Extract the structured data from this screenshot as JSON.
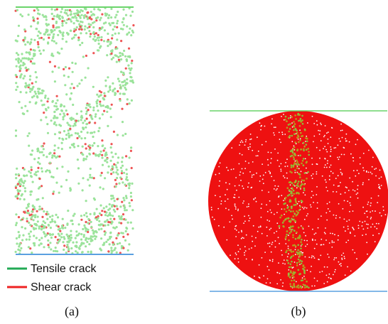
{
  "legend": {
    "items": [
      {
        "label": "Tensile crack"
      },
      {
        "label": "Shear crack"
      }
    ]
  },
  "captions": [
    "(a)",
    "(b)"
  ]
}
